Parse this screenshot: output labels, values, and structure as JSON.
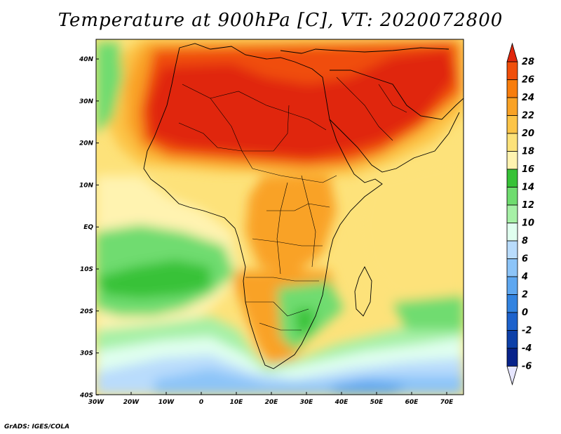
{
  "title": "Temperature at 900hPa [C], VT: 2020072800",
  "footer": "GrADS: IGES/COLA",
  "map": {
    "lon_ticks": [
      "30W",
      "20W",
      "10W",
      "0",
      "10E",
      "20E",
      "30E",
      "40E",
      "50E",
      "60E",
      "70E"
    ],
    "lat_ticks": [
      "40N",
      "30N",
      "20N",
      "10N",
      "EQ",
      "10S",
      "20S",
      "30S",
      "40S"
    ],
    "lon_range": [
      -30,
      75
    ],
    "lat_range": [
      -40,
      45
    ]
  },
  "colorbar": {
    "labels": [
      "28",
      "26",
      "24",
      "22",
      "20",
      "18",
      "16",
      "14",
      "12",
      "10",
      "8",
      "6",
      "4",
      "2",
      "0",
      "-2",
      "-4",
      "-6"
    ],
    "colors": [
      "#e0260c",
      "#f04e0a",
      "#f87d0c",
      "#f9a225",
      "#fcc447",
      "#fde27a",
      "#fff3b0",
      "#37c237",
      "#6fdc6f",
      "#a6f0a6",
      "#e0ffef",
      "#b9dcfc",
      "#8cc4f8",
      "#5ea7f0",
      "#3283e0",
      "#1d62cc",
      "#0d40a8",
      "#07228a",
      "#e6e6ff"
    ]
  }
}
